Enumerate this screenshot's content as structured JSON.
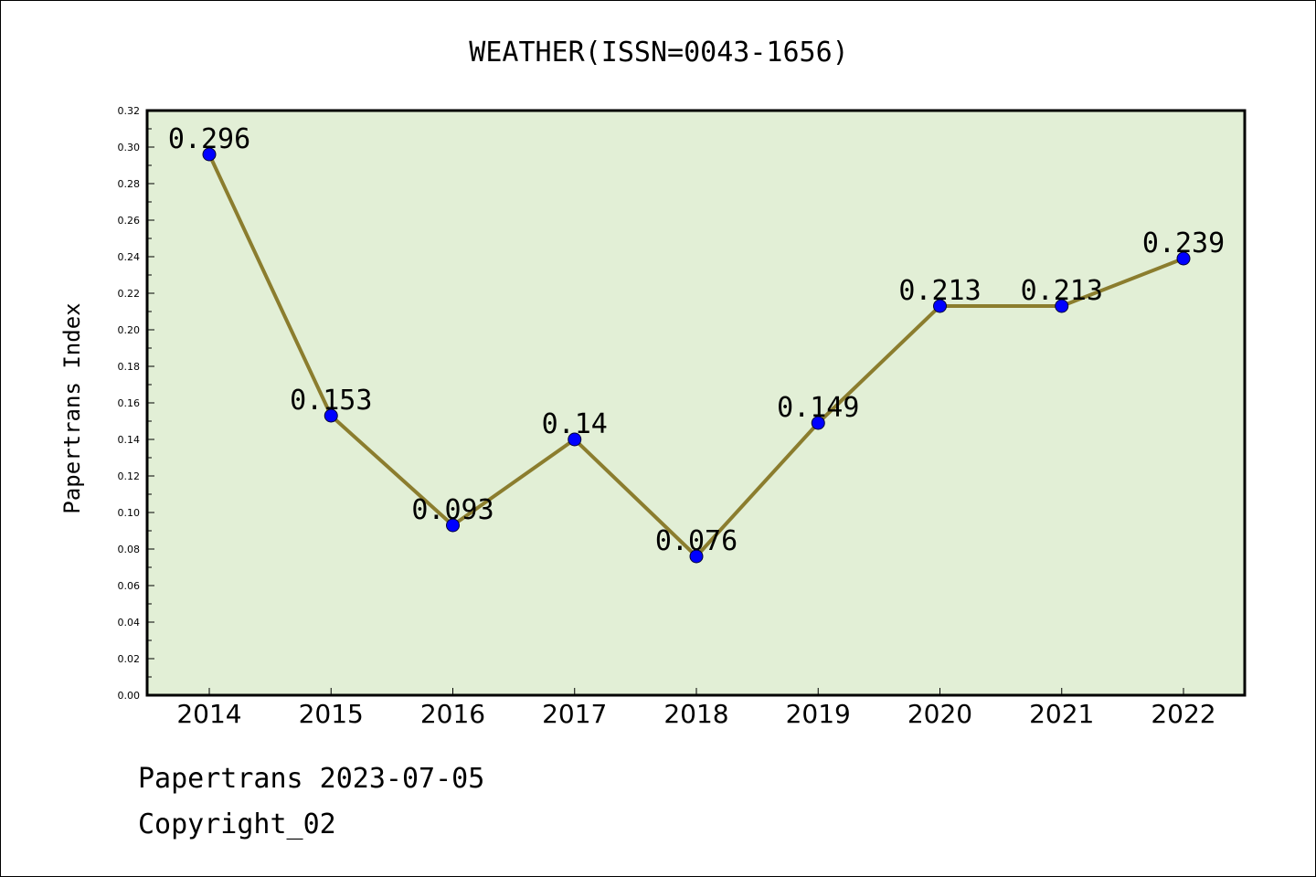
{
  "chart_data": {
    "type": "line",
    "title": "WEATHER(ISSN=0043-1656)",
    "xlabel": "",
    "ylabel": "Papertrans Index",
    "categories": [
      "2014",
      "2015",
      "2016",
      "2017",
      "2018",
      "2019",
      "2020",
      "2021",
      "2022"
    ],
    "series": [
      {
        "values": [
          0.296,
          0.153,
          0.093,
          0.14,
          0.076,
          0.149,
          0.213,
          0.213,
          0.239
        ],
        "labels": [
          "0.296",
          "0.153",
          "0.093",
          "0.14",
          "0.076",
          "0.149",
          "0.213",
          "0.213",
          "0.239"
        ]
      }
    ],
    "ylim": [
      0,
      0.32
    ],
    "yticks": [
      "0.00",
      "0.02",
      "0.04",
      "0.06",
      "0.08",
      "0.10",
      "0.12",
      "0.14",
      "0.16",
      "0.18",
      "0.20",
      "0.22",
      "0.24",
      "0.26",
      "0.28",
      "0.30",
      "0.32"
    ],
    "grid": false,
    "legend": "none",
    "colors": {
      "plot_background": "#e2efd6",
      "line": "#8b7d2e",
      "marker": "#0000ff",
      "axis": "#000000"
    }
  },
  "footer": {
    "date_text": "Papertrans 2023-07-05",
    "copyright_text": "Copyright_02"
  }
}
